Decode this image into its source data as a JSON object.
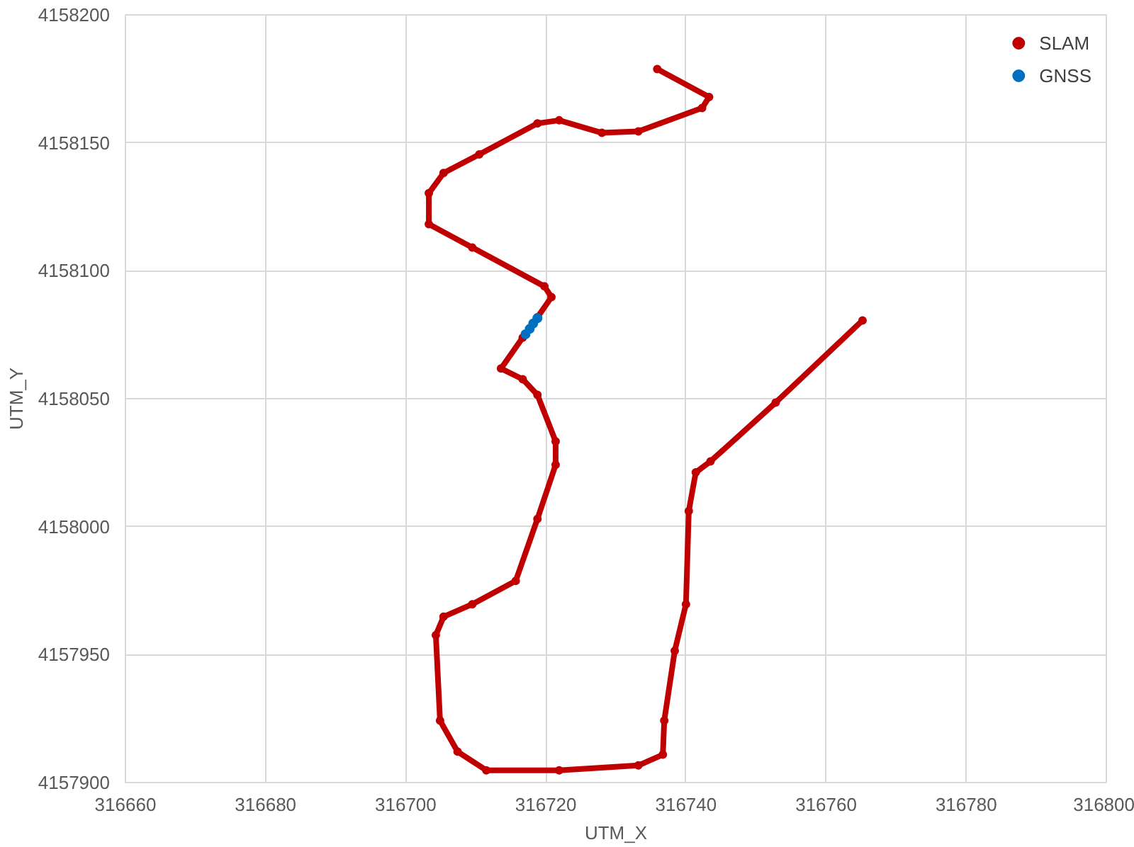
{
  "chart_data": {
    "type": "scatter",
    "xlabel": "UTM_X",
    "ylabel": "UTM_Y",
    "xlim": [
      316660,
      316800
    ],
    "xticks": [
      316660,
      316680,
      316700,
      316720,
      316740,
      316760,
      316780,
      316800
    ],
    "ylim": [
      4157900,
      4158200
    ],
    "yticks": [
      4157900,
      4157950,
      4158000,
      4158050,
      4158100,
      4158150,
      4158200
    ],
    "grid": true,
    "legend": "top right",
    "marker": "circle",
    "series": [
      {
        "name": "SLAM",
        "type": "line",
        "color": "#c00000",
        "x": [
          316735.9,
          316743.3,
          316742.3,
          316733.2,
          316728.0,
          316721.9,
          316718.8,
          316710.5,
          316705.4,
          316703.3,
          316703.3,
          316709.5,
          316719.8,
          316720.8,
          316718.8,
          316716.7,
          316713.6,
          316716.7,
          316718.8,
          316721.4,
          316721.4,
          316718.8,
          316715.7,
          316709.5,
          316705.4,
          316704.3,
          316704.9,
          316707.4,
          316711.5,
          316721.9,
          316733.2,
          316736.7,
          316736.9,
          316738.4,
          316740.0,
          316740.4,
          316741.4,
          316743.5,
          316752.8,
          316765.2
        ],
        "values": [
          4158178.8,
          4158167.9,
          4158163.6,
          4158154.5,
          4158153.9,
          4158158.8,
          4158157.6,
          4158145.5,
          4158138.2,
          4158130.3,
          4158118.2,
          4158109.1,
          4158093.9,
          4158089.7,
          4158081.8,
          4158073.9,
          4158061.8,
          4158057.6,
          4158051.5,
          4158033.3,
          4158024.2,
          4158003.0,
          4157978.8,
          4157969.7,
          4157964.8,
          4157957.6,
          4157924.2,
          4157912.1,
          4157904.8,
          4157904.8,
          4157906.7,
          4157910.9,
          4157924.2,
          4157951.5,
          4157969.7,
          4158006.1,
          4158021.2,
          4158025.5,
          4158048.5,
          4158080.6
        ]
      },
      {
        "name": "GNSS",
        "color": "#0070c0",
        "x": [
          316717.1,
          316717.7,
          316718.2,
          316718.8
        ],
        "values": [
          4158075.2,
          4158077.3,
          4158079.4,
          4158081.5
        ]
      }
    ]
  }
}
